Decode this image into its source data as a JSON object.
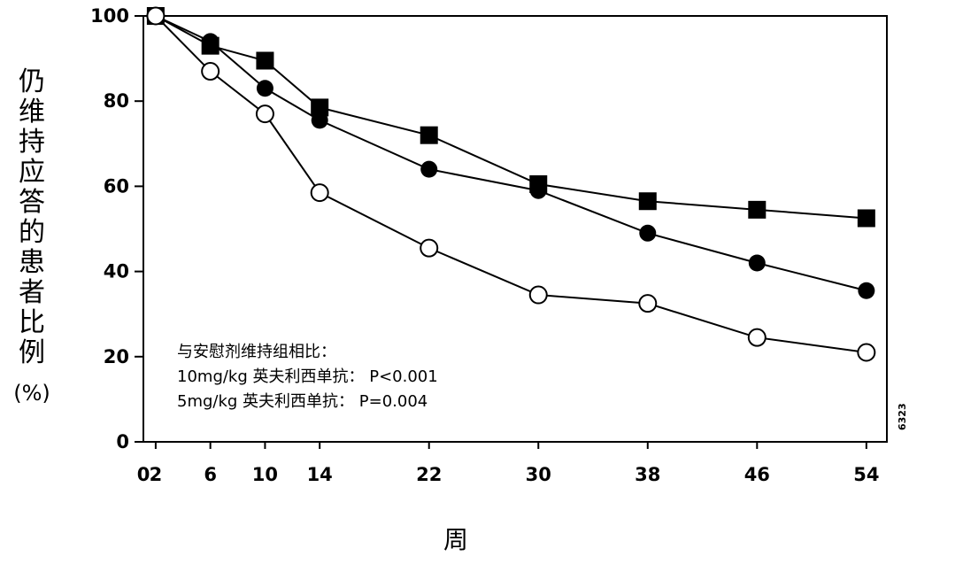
{
  "chart_data": {
    "type": "line",
    "ylabel_chars": "仍维持应答的患者比例",
    "ylabel_unit": "(%)",
    "xlabel": "周",
    "xlim": [
      0,
      55
    ],
    "ylim": [
      0,
      100
    ],
    "xticks": [
      0,
      2,
      6,
      10,
      14,
      22,
      30,
      38,
      46,
      54
    ],
    "yticks": [
      0,
      20,
      40,
      60,
      80,
      100
    ],
    "grid": false,
    "figure_code": "6323",
    "annotation": {
      "heading": "与安慰剂维持组相比：",
      "line1": "10mg/kg 英夫利西单抗：  P<0.001",
      "line2": "5mg/kg 英夫利西单抗：  P=0.004"
    },
    "x": [
      2,
      6,
      10,
      14,
      22,
      30,
      38,
      46,
      54
    ],
    "series": [
      {
        "marker": "filled-square",
        "color": "#000000",
        "values": [
          100,
          93,
          89.5,
          78.5,
          72,
          60.5,
          56.5,
          54.5,
          52.5
        ]
      },
      {
        "marker": "filled-circle",
        "color": "#000000",
        "values": [
          100,
          94,
          83,
          75.5,
          64,
          59,
          49,
          42,
          35.5
        ]
      },
      {
        "marker": "open-circle",
        "color": "#000000",
        "values": [
          100,
          87,
          77,
          58.5,
          45.5,
          34.5,
          32.5,
          24.5,
          21
        ]
      }
    ]
  }
}
